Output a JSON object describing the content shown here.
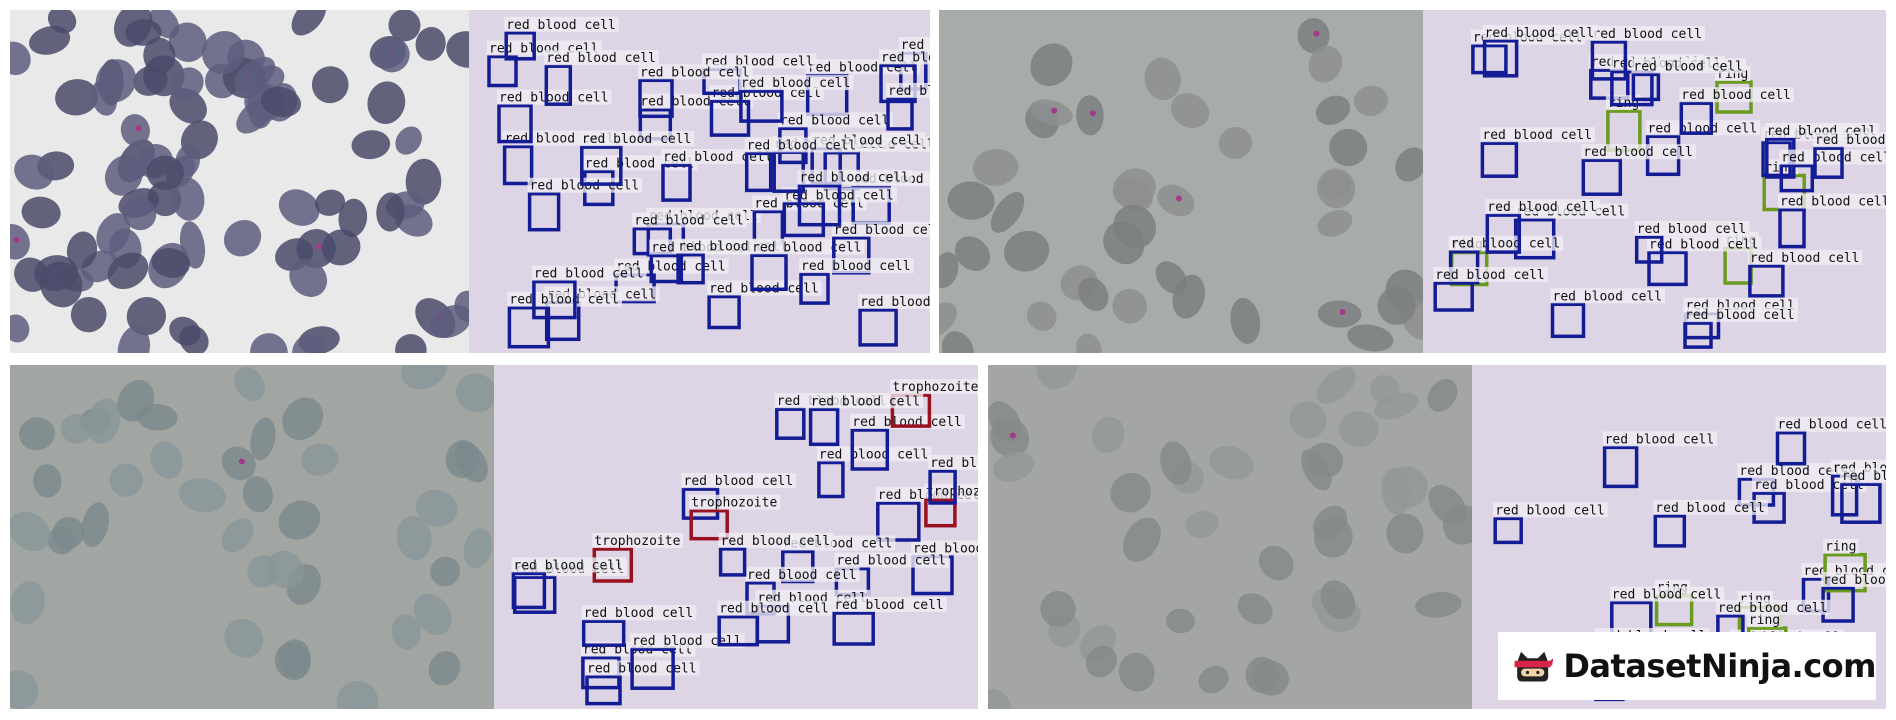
{
  "colors": {
    "red_blood_cell": "#131c94",
    "ring": "#6a9a1e",
    "trophozoite": "#9a1020",
    "overlay_bg": "#ddd5e6"
  },
  "class_names": {
    "rbc": "red blood cell",
    "ring": "ring",
    "troph": "trophozoite"
  },
  "watermark": {
    "text": "DatasetNinja.com",
    "icon": "ninja-cat-logo-icon"
  },
  "panels": [
    {
      "id": "top-left",
      "micro": {
        "background": "#e9e9ea",
        "cell": "#5d5d7e",
        "cell_dark": "#4a4a6a",
        "density": "dense"
      },
      "labels": [
        "red blood cell",
        "red blood cell",
        "red blood cell",
        "red blood cell",
        "red blood cell",
        "red blood cell",
        "red blood cell",
        "red blood cell",
        "red blood cell",
        "red blood cell",
        "red blood cell",
        "red blood cell",
        "red blood cell",
        "red blood cell",
        "red blood cell",
        "red blood cell",
        "red blood cell",
        "red blood cell",
        "red blood cell",
        "red blood cell",
        "red blood cell",
        "red blood cell",
        "red blood cell",
        "red blood cell",
        "red blood cell",
        "red blood cell",
        "red blood cell",
        "red blood cell",
        "red blood cell",
        "red blood cell",
        "red blood cell",
        "red blood cell",
        "red blood cell",
        "red blood cell",
        "red blood cell",
        "red blood cell",
        "red blood cell",
        "red blood cell",
        "red blood cell",
        "red blood cell"
      ]
    },
    {
      "id": "top-right",
      "micro": {
        "background": "#a7aca8",
        "cell": "#8d8f8f",
        "cell_dark": "#7d7f80",
        "density": "sparse"
      },
      "labels": [
        "red blood cell",
        "red blood cell",
        "red blood cell",
        "red blood cell",
        "red blood cell",
        "ring",
        "ring",
        "ring",
        "ring",
        "ring",
        "red blood cell",
        "red blood cell",
        "red blood cell",
        "red blood cell",
        "red blood cell",
        "red blood cell",
        "red blood cell",
        "red blood cell",
        "red blood cell",
        "red blood cell",
        "red blood cell",
        "red blood cell",
        "red blood cell",
        "red blood cell",
        "red blood cell",
        "red blood cell",
        "red blood cell",
        "red blood cell",
        "red blood cell",
        "red blood cell"
      ]
    },
    {
      "id": "bottom-left",
      "micro": {
        "background": "#a1a6a2",
        "cell": "#8a9699",
        "cell_dark": "#7c898d",
        "density": "sparse"
      },
      "labels": [
        "red blood cell",
        "red blood cell",
        "trophozoite",
        "red blood cell",
        "red blood cell",
        "trophozoite",
        "red blood cell",
        "red blood cell",
        "red blood cell",
        "red blood cell",
        "red blood cell",
        "red blood cell",
        "trophozoite",
        "red blood cell",
        "red blood cell",
        "red blood cell",
        "red blood cell",
        "red blood cell",
        "red blood cell",
        "trophozoite",
        "red blood cell",
        "red blood cell",
        "red blood cell",
        "red blood cell",
        "red blood cell"
      ]
    },
    {
      "id": "bottom-right",
      "micro": {
        "background": "#a4a6a5",
        "cell": "#949899",
        "cell_dark": "#868a8b",
        "density": "sparse"
      },
      "labels": [
        "red blood cell",
        "red blood cell",
        "ring",
        "ring",
        "red blood cell",
        "red blood cell",
        "ring",
        "red blood cell",
        "red blood cell",
        "red blood cell",
        "red blood cell",
        "red blood cell",
        "red blood cell",
        "red blood cell",
        "red blood cell",
        "ring",
        "red blood cell",
        "red blood cell",
        "red blood cell",
        "red blood cell"
      ]
    }
  ]
}
